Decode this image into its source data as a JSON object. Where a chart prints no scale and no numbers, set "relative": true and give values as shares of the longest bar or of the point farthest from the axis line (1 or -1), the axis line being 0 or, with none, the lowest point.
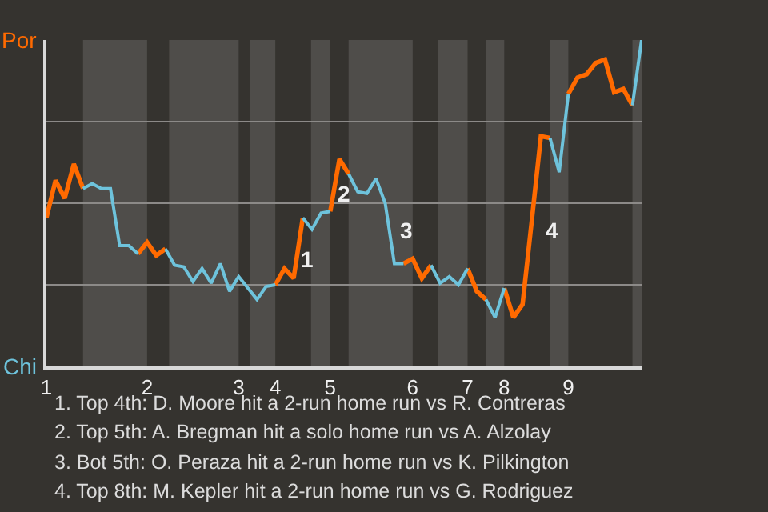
{
  "chart_data": {
    "type": "line",
    "relative": true,
    "categories": [
      "1",
      null,
      null,
      null,
      null,
      null,
      null,
      null,
      null,
      null,
      null,
      "2",
      null,
      null,
      null,
      null,
      null,
      null,
      null,
      null,
      null,
      "3",
      null,
      null,
      null,
      "4",
      null,
      null,
      null,
      null,
      null,
      "5",
      null,
      null,
      null,
      null,
      null,
      null,
      null,
      null,
      "6",
      null,
      null,
      null,
      null,
      null,
      "7",
      null,
      null,
      null,
      "8",
      null,
      null,
      null,
      null,
      null,
      null,
      "9",
      null,
      null,
      null,
      null,
      null,
      null,
      null,
      null
    ],
    "series": [
      {
        "color": "#ff6a00",
        "values": [
          -0.09,
          0.14,
          0.03,
          0.24,
          0.09,
          null,
          null,
          null,
          null,
          null,
          -0.31,
          -0.24,
          -0.32,
          -0.28,
          null,
          null,
          null,
          null,
          null,
          null,
          null,
          null,
          null,
          null,
          null,
          -0.5,
          -0.4,
          -0.46,
          -0.09,
          null,
          null,
          -0.05,
          0.27,
          0.18,
          null,
          null,
          null,
          null,
          null,
          -0.37,
          -0.34,
          -0.46,
          -0.38,
          null,
          null,
          null,
          -0.4,
          -0.54,
          -0.59,
          null,
          -0.52,
          -0.7,
          -0.62,
          -0.11,
          0.41,
          0.4,
          null,
          0.67,
          0.77,
          0.79,
          0.86,
          0.88,
          0.68,
          0.7,
          0.6,
          null
        ]
      },
      {
        "color": "#6ec3dc",
        "values": [
          null,
          null,
          null,
          null,
          0.09,
          0.12,
          0.09,
          0.09,
          -0.26,
          -0.26,
          -0.31,
          null,
          null,
          -0.28,
          -0.38,
          -0.39,
          -0.48,
          -0.4,
          -0.49,
          -0.37,
          -0.54,
          -0.45,
          -0.52,
          -0.59,
          -0.51,
          -0.5,
          null,
          null,
          -0.09,
          -0.16,
          -0.06,
          -0.05,
          null,
          0.18,
          0.07,
          0.06,
          0.15,
          0.0,
          -0.37,
          -0.37,
          null,
          null,
          -0.38,
          -0.49,
          -0.45,
          -0.5,
          -0.4,
          null,
          -0.59,
          -0.7,
          -0.52,
          null,
          null,
          null,
          null,
          0.4,
          0.19,
          0.67,
          null,
          null,
          null,
          null,
          null,
          null,
          0.6,
          1.0
        ]
      }
    ],
    "grid": "y",
    "marker": "none",
    "line_style": "solid",
    "annotations": [
      "Por",
      "Chi",
      "1",
      "2",
      "3",
      "4",
      "1. Top 4th: D. Moore hit a 2-run home run vs R. Contreras",
      "2. Top 5th: A. Bregman hit a solo home run vs A. Alzolay",
      "3. Bot 5th: O. Peraza hit a 2-run home run vs K. Pilkington",
      "4. Top 8th: M. Kepler hit a 2-run home run vs G. Rodriguez"
    ]
  }
}
